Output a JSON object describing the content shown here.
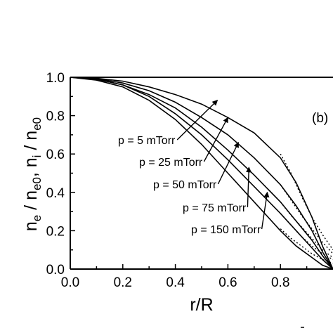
{
  "chart_data": {
    "type": "line",
    "title": "",
    "panel_label": "(b)",
    "xlabel": "r/R",
    "xlim": [
      0,
      1
    ],
    "ylim": [
      0,
      1
    ],
    "xticks": [
      "0.0",
      "0.2",
      "0.4",
      "0.6",
      "0.8"
    ],
    "yticks": [
      "0.0",
      "0.2",
      "0.4",
      "0.6",
      "0.8",
      "1.0"
    ],
    "grid": false,
    "legend": "none",
    "annotations": [
      {
        "text": "p = 5 mTorr",
        "arrow_to": [
          0.56,
          0.88
        ]
      },
      {
        "text": "p = 25 mTorr",
        "arrow_to": [
          0.6,
          0.79
        ]
      },
      {
        "text": "p = 50 mTorr",
        "arrow_to": [
          0.64,
          0.66
        ]
      },
      {
        "text": "p = 75 mTorr",
        "arrow_to": [
          0.68,
          0.53
        ]
      },
      {
        "text": "p = 150 mTorr",
        "arrow_to": [
          0.75,
          0.4
        ]
      }
    ],
    "series": [
      {
        "style": "solid",
        "x": [
          0,
          0.1,
          0.2,
          0.3,
          0.4,
          0.5,
          0.6,
          0.7,
          0.8,
          0.86,
          0.92,
          0.96,
          1.0
        ],
        "y": [
          1.0,
          0.995,
          0.98,
          0.95,
          0.91,
          0.86,
          0.79,
          0.71,
          0.58,
          0.45,
          0.27,
          0.12,
          0.0
        ]
      },
      {
        "style": "solid",
        "x": [
          0,
          0.1,
          0.2,
          0.3,
          0.4,
          0.5,
          0.6,
          0.7,
          0.8,
          0.86,
          0.92,
          0.96,
          1.0
        ],
        "y": [
          1.0,
          0.993,
          0.97,
          0.93,
          0.87,
          0.79,
          0.7,
          0.58,
          0.44,
          0.33,
          0.2,
          0.09,
          0.0
        ]
      },
      {
        "style": "solid",
        "x": [
          0,
          0.1,
          0.2,
          0.3,
          0.4,
          0.5,
          0.6,
          0.7,
          0.8,
          0.86,
          0.92,
          0.96,
          1.0
        ],
        "y": [
          1.0,
          0.99,
          0.96,
          0.91,
          0.84,
          0.74,
          0.62,
          0.49,
          0.35,
          0.25,
          0.15,
          0.07,
          0.0
        ]
      },
      {
        "style": "solid",
        "x": [
          0,
          0.1,
          0.2,
          0.3,
          0.4,
          0.5,
          0.6,
          0.7,
          0.8,
          0.86,
          0.92,
          0.96,
          1.0
        ],
        "y": [
          1.0,
          0.99,
          0.96,
          0.9,
          0.81,
          0.7,
          0.57,
          0.43,
          0.29,
          0.2,
          0.11,
          0.05,
          0.0
        ]
      },
      {
        "style": "solid",
        "x": [
          0,
          0.1,
          0.2,
          0.3,
          0.4,
          0.5,
          0.6,
          0.7,
          0.8,
          0.86,
          0.92,
          0.96,
          1.0
        ],
        "y": [
          1.0,
          0.985,
          0.95,
          0.88,
          0.78,
          0.65,
          0.5,
          0.35,
          0.2,
          0.12,
          0.06,
          0.02,
          0.0
        ]
      },
      {
        "style": "dotted",
        "x": [
          0.8,
          0.84,
          0.88,
          0.92,
          0.96,
          1.0
        ],
        "y": [
          0.6,
          0.5,
          0.38,
          0.27,
          0.18,
          0.1
        ]
      },
      {
        "style": "dotted",
        "x": [
          0.8,
          0.84,
          0.88,
          0.92,
          0.96,
          1.0
        ],
        "y": [
          0.44,
          0.36,
          0.28,
          0.21,
          0.14,
          0.08
        ]
      },
      {
        "style": "dotted",
        "x": [
          0.8,
          0.84,
          0.88,
          0.92,
          0.96,
          1.0
        ],
        "y": [
          0.35,
          0.28,
          0.22,
          0.16,
          0.1,
          0.06
        ]
      },
      {
        "style": "dotted",
        "x": [
          0.8,
          0.84,
          0.88,
          0.92,
          0.96,
          1.0
        ],
        "y": [
          0.29,
          0.23,
          0.17,
          0.12,
          0.08,
          0.05
        ]
      },
      {
        "style": "dotted",
        "x": [
          0.8,
          0.84,
          0.88,
          0.92,
          0.96,
          1.0
        ],
        "y": [
          0.21,
          0.16,
          0.12,
          0.08,
          0.05,
          0.03
        ]
      }
    ]
  }
}
